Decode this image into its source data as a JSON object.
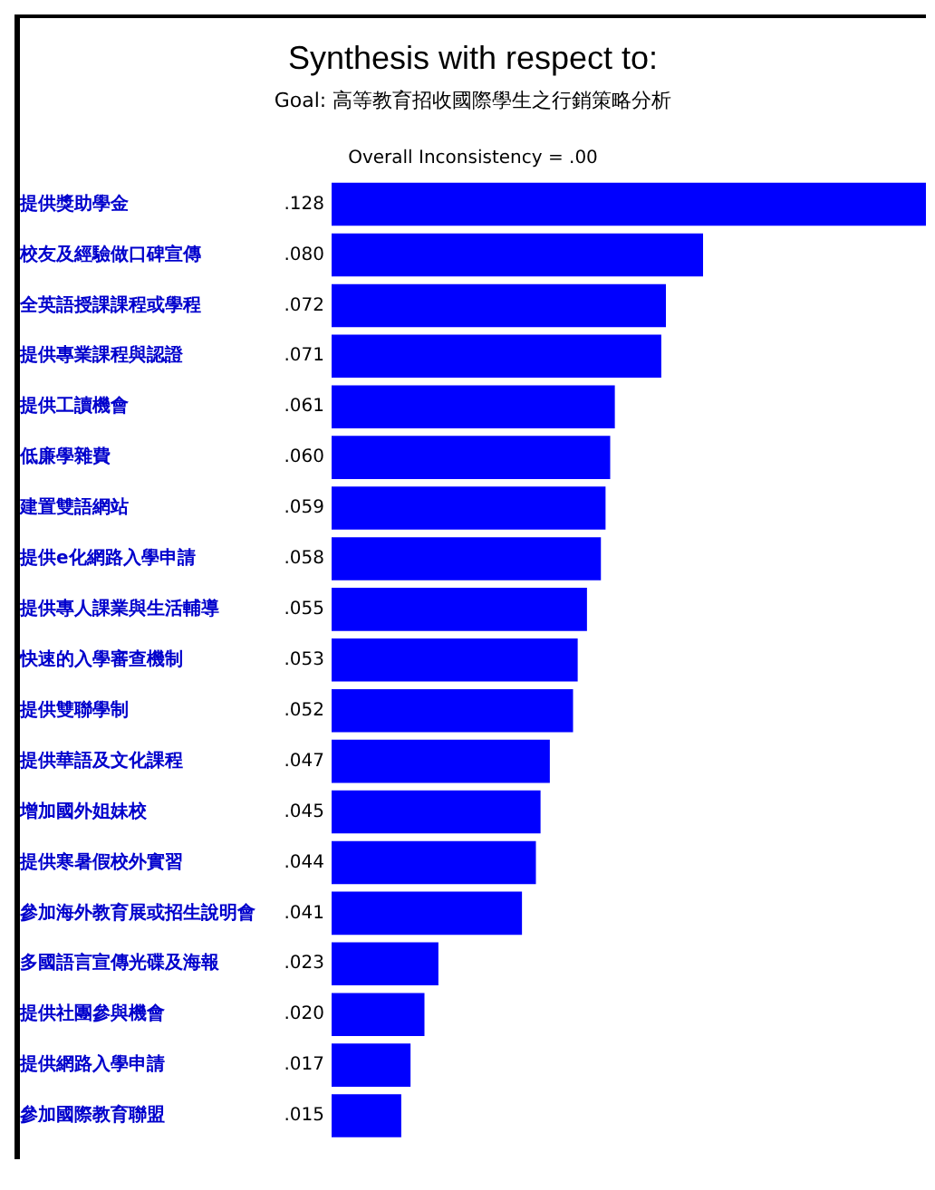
{
  "chart_data": {
    "type": "bar",
    "orientation": "horizontal",
    "title": "Synthesis with respect to:",
    "subtitle": "Goal: 高等教育招收國際學生之行銷策略分析",
    "annotations": [
      "Overall Inconsistency = .00"
    ],
    "categories": [
      "提供獎助學金",
      "校友及經驗做口碑宣傳",
      "全英語授課課程或學程",
      "提供專業課程與認證",
      "提供工讀機會",
      "低廉學雜費",
      "建置雙語網站",
      "提供e化網路入學申請",
      "提供專人課業與生活輔導",
      "快速的入學審查機制",
      "提供雙聯學制",
      "提供華語及文化課程",
      "增加國外姐妹校",
      "提供寒暑假校外實習",
      "參加海外教育展或招生說明會",
      "多國語言宣傳光碟及海報",
      "提供社團參與機會",
      "提供網路入學申請",
      "參加國際教育聯盟"
    ],
    "values": [
      0.128,
      0.08,
      0.072,
      0.071,
      0.061,
      0.06,
      0.059,
      0.058,
      0.055,
      0.053,
      0.052,
      0.047,
      0.045,
      0.044,
      0.041,
      0.023,
      0.02,
      0.017,
      0.015
    ],
    "value_labels": [
      ".128",
      ".080",
      ".072",
      ".071",
      ".061",
      ".060",
      ".059",
      ".058",
      ".055",
      ".053",
      ".052",
      ".047",
      ".045",
      ".044",
      ".041",
      ".023",
      ".020",
      ".017",
      ".015"
    ],
    "color": "#0000ff",
    "grid": false,
    "legend": false
  }
}
